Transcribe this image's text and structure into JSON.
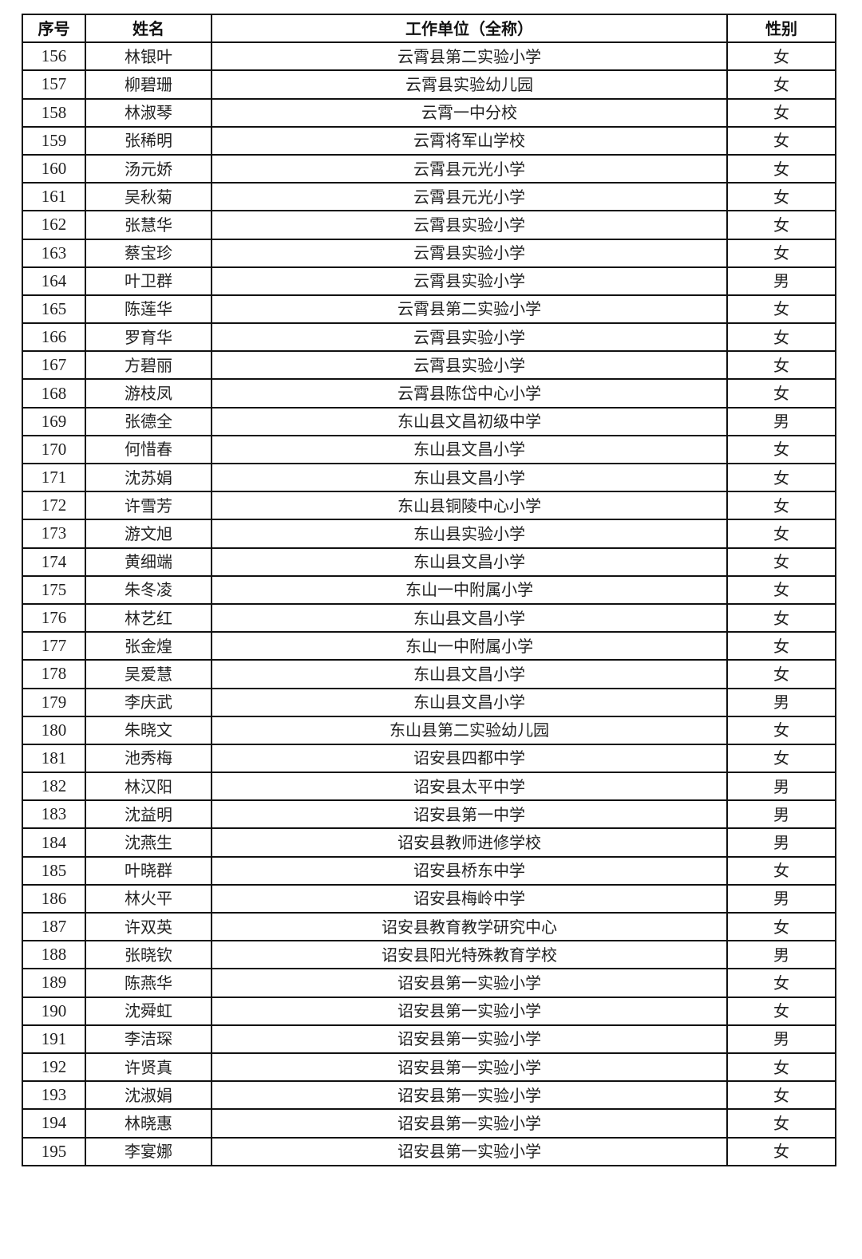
{
  "table": {
    "headers": [
      "序号",
      "姓名",
      "工作单位（全称）",
      "性别"
    ],
    "rows": [
      [
        "156",
        "林银叶",
        "云霄县第二实验小学",
        "女"
      ],
      [
        "157",
        "柳碧珊",
        "云霄县实验幼儿园",
        "女"
      ],
      [
        "158",
        "林淑琴",
        "云霄一中分校",
        "女"
      ],
      [
        "159",
        "张稀明",
        "云霄将军山学校",
        "女"
      ],
      [
        "160",
        "汤元娇",
        "云霄县元光小学",
        "女"
      ],
      [
        "161",
        "吴秋菊",
        "云霄县元光小学",
        "女"
      ],
      [
        "162",
        "张慧华",
        "云霄县实验小学",
        "女"
      ],
      [
        "163",
        "蔡宝珍",
        "云霄县实验小学",
        "女"
      ],
      [
        "164",
        "叶卫群",
        "云霄县实验小学",
        "男"
      ],
      [
        "165",
        "陈莲华",
        "云霄县第二实验小学",
        "女"
      ],
      [
        "166",
        "罗育华",
        "云霄县实验小学",
        "女"
      ],
      [
        "167",
        "方碧丽",
        "云霄县实验小学",
        "女"
      ],
      [
        "168",
        "游枝凤",
        "云霄县陈岱中心小学",
        "女"
      ],
      [
        "169",
        "张德全",
        "东山县文昌初级中学",
        "男"
      ],
      [
        "170",
        "何惜春",
        "东山县文昌小学",
        "女"
      ],
      [
        "171",
        "沈苏娟",
        "东山县文昌小学",
        "女"
      ],
      [
        "172",
        "许雪芳",
        "东山县铜陵中心小学",
        "女"
      ],
      [
        "173",
        "游文旭",
        "东山县实验小学",
        "女"
      ],
      [
        "174",
        "黄细端",
        "东山县文昌小学",
        "女"
      ],
      [
        "175",
        "朱冬凌",
        "东山一中附属小学",
        "女"
      ],
      [
        "176",
        "林艺红",
        "东山县文昌小学",
        "女"
      ],
      [
        "177",
        "张金煌",
        "东山一中附属小学",
        "女"
      ],
      [
        "178",
        "吴爱慧",
        "东山县文昌小学",
        "女"
      ],
      [
        "179",
        "李庆武",
        "东山县文昌小学",
        "男"
      ],
      [
        "180",
        "朱晓文",
        "东山县第二实验幼儿园",
        "女"
      ],
      [
        "181",
        "池秀梅",
        "诏安县四都中学",
        "女"
      ],
      [
        "182",
        "林汉阳",
        "诏安县太平中学",
        "男"
      ],
      [
        "183",
        "沈益明",
        "诏安县第一中学",
        "男"
      ],
      [
        "184",
        "沈燕生",
        "诏安县教师进修学校",
        "男"
      ],
      [
        "185",
        "叶晓群",
        "诏安县桥东中学",
        "女"
      ],
      [
        "186",
        "林火平",
        "诏安县梅岭中学",
        "男"
      ],
      [
        "187",
        "许双英",
        "诏安县教育教学研究中心",
        "女"
      ],
      [
        "188",
        "张晓钦",
        "诏安县阳光特殊教育学校",
        "男"
      ],
      [
        "189",
        "陈燕华",
        "诏安县第一实验小学",
        "女"
      ],
      [
        "190",
        "沈舜虹",
        "诏安县第一实验小学",
        "女"
      ],
      [
        "191",
        "李洁琛",
        "诏安县第一实验小学",
        "男"
      ],
      [
        "192",
        "许贤真",
        "诏安县第一实验小学",
        "女"
      ],
      [
        "193",
        "沈淑娟",
        "诏安县第一实验小学",
        "女"
      ],
      [
        "194",
        "林晓惠",
        "诏安县第一实验小学",
        "女"
      ],
      [
        "195",
        "李宴娜",
        "诏安县第一实验小学",
        "女"
      ]
    ]
  }
}
